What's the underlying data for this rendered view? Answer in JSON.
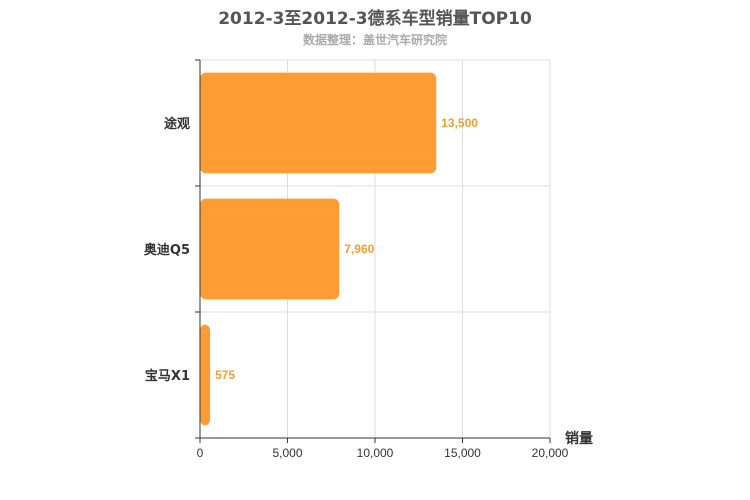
{
  "chart_data": {
    "type": "bar",
    "orientation": "horizontal",
    "title": "2012-3至2012-3德系车型销量TOP10",
    "subtitle": "数据整理：盖世汽车研究院",
    "xlabel": "销量",
    "ylabel": "",
    "categories": [
      "途观",
      "奥迪Q5",
      "宝马X1"
    ],
    "values": [
      13500,
      7960,
      575
    ],
    "value_labels": [
      "13,500",
      "7,960",
      "575"
    ],
    "xlim": [
      0,
      20000
    ],
    "x_ticks": [
      0,
      5000,
      10000,
      15000,
      20000
    ],
    "x_tick_labels": [
      "0",
      "5,000",
      "10,000",
      "15,000",
      "20,000"
    ],
    "grid": true,
    "legend": "none",
    "bar_color": "#ff9c33",
    "label_color": "#f0a030"
  }
}
